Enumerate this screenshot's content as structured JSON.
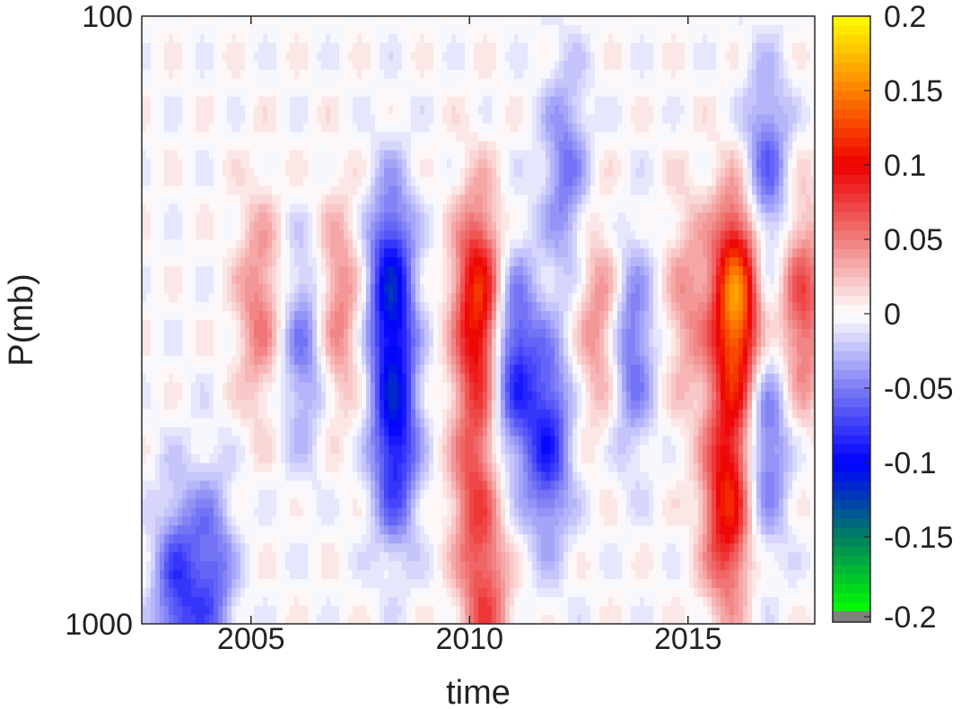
{
  "chart_data": {
    "type": "heatmap",
    "title": "",
    "xlabel": "time",
    "ylabel": "P(mb)",
    "x_tick_labels": [
      "2005",
      "2010",
      "2015"
    ],
    "x_ticks": [
      2005,
      2010,
      2015
    ],
    "xlim": [
      2002.5,
      2017.9
    ],
    "y_tick_labels": [
      "100",
      "1000"
    ],
    "y_ticks": [
      100,
      1000
    ],
    "ylim": [
      100,
      1000
    ],
    "y_scale": "log",
    "y_direction": "reversed",
    "grid": false,
    "colorbar": {
      "position": "right",
      "min": -0.2,
      "max": 0.2,
      "tick_values": [
        0.2,
        0.15,
        0.1,
        0.05,
        0,
        -0.05,
        -0.1,
        -0.15,
        -0.2
      ],
      "tick_labels": [
        "0.2",
        "0.15",
        "0.1",
        "0.05",
        "0",
        "-0.05",
        "-0.1",
        "-0.15",
        "-0.2"
      ],
      "below_min_color": "#808080",
      "stops": [
        {
          "value": -0.2,
          "color": "#00ff00"
        },
        {
          "value": -0.15,
          "color": "#008060"
        },
        {
          "value": -0.1,
          "color": "#0000ff"
        },
        {
          "value": -0.05,
          "color": "#7b7bf5"
        },
        {
          "value": 0,
          "color": "#ffffff"
        },
        {
          "value": 0.05,
          "color": "#f07e7e"
        },
        {
          "value": 0.1,
          "color": "#ee0000"
        },
        {
          "value": 0.15,
          "color": "#ff8000"
        },
        {
          "value": 0.2,
          "color": "#ffff00"
        }
      ]
    },
    "features": [
      {
        "t": 2003.3,
        "p": 900,
        "v": -0.07
      },
      {
        "t": 2004.1,
        "p": 850,
        "v": -0.06
      },
      {
        "t": 2005.2,
        "p": 300,
        "v": 0.05
      },
      {
        "t": 2006.2,
        "p": 350,
        "v": -0.05
      },
      {
        "t": 2007.0,
        "p": 300,
        "v": 0.05
      },
      {
        "t": 2008.2,
        "p": 280,
        "v": -0.1
      },
      {
        "t": 2008.3,
        "p": 500,
        "v": -0.09
      },
      {
        "t": 2010.2,
        "p": 300,
        "v": 0.12
      },
      {
        "t": 2010.1,
        "p": 600,
        "v": 0.06
      },
      {
        "t": 2011.0,
        "p": 370,
        "v": -0.08
      },
      {
        "t": 2011.8,
        "p": 500,
        "v": -0.08
      },
      {
        "t": 2012.2,
        "p": 180,
        "v": -0.05
      },
      {
        "t": 2013.0,
        "p": 320,
        "v": 0.05
      },
      {
        "t": 2013.7,
        "p": 350,
        "v": -0.06
      },
      {
        "t": 2015.0,
        "p": 300,
        "v": 0.04
      },
      {
        "t": 2016.1,
        "p": 300,
        "v": 0.16
      },
      {
        "t": 2015.9,
        "p": 630,
        "v": 0.11
      },
      {
        "t": 2016.8,
        "p": 180,
        "v": -0.06
      },
      {
        "t": 2016.8,
        "p": 500,
        "v": -0.06
      },
      {
        "t": 2017.6,
        "p": 300,
        "v": 0.07
      },
      {
        "t": 2010.4,
        "p": 1000,
        "v": 0.06
      }
    ]
  }
}
